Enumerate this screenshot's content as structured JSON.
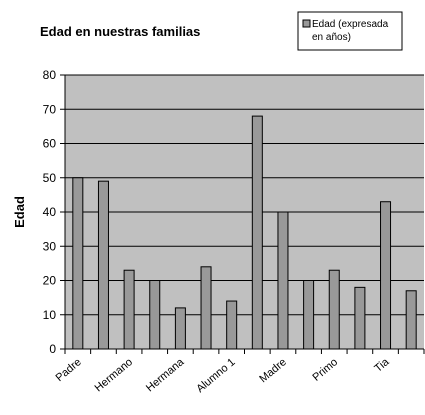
{
  "chart_data": {
    "type": "bar",
    "title": "Edad en nuestras familias",
    "ylabel": "Edad",
    "xlabel": "",
    "ylim": [
      0,
      80
    ],
    "ytick_step": 10,
    "grid": true,
    "legend_position": "top-right",
    "colors": {
      "plot_background": "#c0c0c0",
      "bar_fill": "#999999",
      "bar_stroke": "#000000",
      "grid": "#000000"
    },
    "categories": [
      "Padre",
      "",
      "Hermano",
      "",
      "Hermana",
      "",
      "Alumno 1",
      "",
      "Madre",
      "",
      "Primo",
      "",
      "Tia",
      ""
    ],
    "series": [
      {
        "name": "Edad (expresada en años)",
        "legend_lines": [
          "Edad (expresada",
          "en años)"
        ],
        "values": [
          50,
          49,
          23,
          20,
          12,
          24,
          14,
          68,
          40,
          20,
          23,
          18,
          43,
          17
        ]
      }
    ]
  }
}
